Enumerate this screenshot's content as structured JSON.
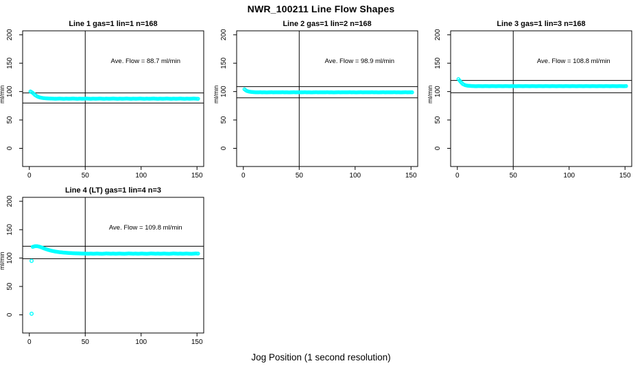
{
  "page_title": "NWR_100211  Line Flow Shapes",
  "x_axis_label": "Jog Position (1 second resolution)",
  "colors": {
    "points": "#00ffff",
    "axis": "#000000"
  },
  "chart_data": [
    {
      "type": "scatter",
      "title": "Line 1 gas=1 lin=1 n=168",
      "annotation": "Ave. Flow =  88.7  ml/min",
      "ave_flow_ml_min": 88.7,
      "ylabel": "ml/min",
      "xlim": [
        -6,
        156
      ],
      "ylim": [
        -32,
        207
      ],
      "xticks": [
        0,
        50,
        100,
        150
      ],
      "yticks": [
        0,
        50,
        100,
        150,
        200
      ],
      "vline_x": 50,
      "ref_lines": {
        "upper": 97.6,
        "lower": 79.8
      },
      "series": {
        "x_start": 1,
        "x_step": 2,
        "y": [
          100.2,
          97.8,
          94.0,
          91.5,
          89.9,
          89.0,
          88.4,
          88.1,
          87.9,
          87.7,
          87.6,
          87.4,
          87.5,
          87.7,
          87.5,
          87.3,
          87.6,
          87.4,
          87.5,
          87.7,
          87.5,
          87.3,
          87.6,
          87.4,
          87.5,
          87.7,
          87.5,
          87.3,
          87.6,
          87.4,
          87.5,
          87.7,
          87.5,
          87.3,
          87.6,
          87.4,
          87.5,
          87.7,
          87.5,
          87.3,
          87.6,
          87.4,
          87.5,
          87.7,
          87.5,
          87.3,
          87.6,
          87.4,
          87.5,
          87.7,
          87.5,
          87.3,
          87.6,
          87.4,
          87.5,
          87.7,
          87.5,
          87.3,
          87.6,
          87.4,
          87.5,
          87.7,
          87.5,
          87.3,
          87.6,
          87.4,
          87.5,
          87.7,
          87.5,
          87.3,
          87.6,
          87.4,
          87.5,
          87.7,
          87.5,
          87.3
        ]
      },
      "outliers": []
    },
    {
      "type": "scatter",
      "title": "Line 2 gas=1 lin=2 n=168",
      "annotation": "Ave. Flow =  98.9  ml/min",
      "ave_flow_ml_min": 98.9,
      "ylabel": "ml/min",
      "xlim": [
        -6,
        156
      ],
      "ylim": [
        -32,
        207
      ],
      "xticks": [
        0,
        50,
        100,
        150
      ],
      "yticks": [
        0,
        50,
        100,
        150,
        200
      ],
      "vline_x": 50,
      "ref_lines": {
        "upper": 108.8,
        "lower": 89.0
      },
      "series": {
        "x_start": 1,
        "x_step": 2,
        "y": [
          104.0,
          101.2,
          100.0,
          99.4,
          99.0,
          98.8,
          98.7,
          98.9,
          98.6,
          98.8,
          98.5,
          98.7,
          98.9,
          98.6,
          98.8,
          98.7,
          98.7,
          98.9,
          98.6,
          98.8,
          98.5,
          98.7,
          98.9,
          98.6,
          98.8,
          98.7,
          98.7,
          98.9,
          98.6,
          98.8,
          98.5,
          98.7,
          98.9,
          98.6,
          98.8,
          98.7,
          98.7,
          98.9,
          98.6,
          98.8,
          98.5,
          98.7,
          98.9,
          98.6,
          98.8,
          98.7,
          98.7,
          98.9,
          98.6,
          98.8,
          98.5,
          98.7,
          98.9,
          98.6,
          98.8,
          98.7,
          98.7,
          98.9,
          98.6,
          98.8,
          98.5,
          98.7,
          98.9,
          98.6,
          98.8,
          98.7,
          98.7,
          98.9,
          98.6,
          98.8,
          98.5,
          98.7,
          98.9,
          98.6,
          98.8,
          98.7
        ]
      },
      "outliers": []
    },
    {
      "type": "scatter",
      "title": "Line 3 gas=1 lin=3 n=168",
      "annotation": "Ave. Flow =  108.8  ml/min",
      "ave_flow_ml_min": 108.8,
      "ylabel": "ml/min",
      "xlim": [
        -6,
        156
      ],
      "ylim": [
        -32,
        207
      ],
      "xticks": [
        0,
        50,
        100,
        150
      ],
      "yticks": [
        0,
        50,
        100,
        150,
        200
      ],
      "vline_x": 50,
      "ref_lines": {
        "upper": 119.7,
        "lower": 97.9
      },
      "series": {
        "x_start": 1,
        "x_step": 2,
        "y": [
          122.0,
          117.0,
          113.2,
          111.3,
          110.4,
          110.0,
          109.8,
          109.6,
          109.4,
          109.7,
          109.6,
          109.4,
          109.7,
          109.6,
          109.4,
          109.7,
          109.6,
          109.4,
          109.7,
          109.6,
          109.4,
          109.7,
          109.6,
          109.4,
          109.7,
          109.6,
          109.4,
          109.7,
          109.6,
          109.4,
          109.7,
          109.6,
          109.4,
          109.7,
          109.6,
          109.4,
          109.7,
          109.6,
          109.4,
          109.7,
          109.6,
          109.4,
          109.7,
          109.6,
          109.4,
          109.7,
          109.6,
          109.4,
          109.7,
          109.6,
          109.4,
          109.7,
          109.6,
          109.4,
          109.7,
          109.6,
          109.4,
          109.7,
          109.6,
          109.4,
          109.7,
          109.6,
          109.4,
          109.7,
          109.6,
          109.4,
          109.7,
          109.6,
          109.4,
          109.7,
          109.6,
          109.4,
          109.7,
          109.6,
          109.4,
          109.7
        ]
      },
      "outliers": []
    },
    {
      "type": "scatter",
      "title": "Line 4 (LT) gas=1 lin=4 n=3",
      "annotation": "Ave. Flow =  109.8  ml/min",
      "ave_flow_ml_min": 109.8,
      "ylabel": "ml/min",
      "xlim": [
        -6,
        156
      ],
      "ylim": [
        -32,
        207
      ],
      "xticks": [
        0,
        50,
        100,
        150
      ],
      "yticks": [
        0,
        50,
        100,
        150,
        200
      ],
      "vline_x": 50,
      "ref_lines": {
        "upper": 120.8,
        "lower": 98.8
      },
      "series": {
        "x_start": 3,
        "x_step": 2,
        "y": [
          119.8,
          120.9,
          121.0,
          120.1,
          118.7,
          117.1,
          115.7,
          114.4,
          113.3,
          112.4,
          111.6,
          111.0,
          110.4,
          110.0,
          109.6,
          109.3,
          109.0,
          108.8,
          108.6,
          108.4,
          108.3,
          108.1,
          108.0,
          107.9,
          107.8,
          107.7,
          107.9,
          107.6,
          107.8,
          108.0,
          107.7,
          107.5,
          107.8,
          108.1,
          107.9,
          107.7,
          107.9,
          107.6,
          107.8,
          108.0,
          107.7,
          107.5,
          107.8,
          108.1,
          107.9,
          107.7,
          107.9,
          107.6,
          107.8,
          108.0,
          107.7,
          107.5,
          107.8,
          108.1,
          107.9,
          107.7,
          107.9,
          107.6,
          107.8,
          108.0,
          107.7,
          107.5,
          107.8,
          108.1,
          107.9,
          107.7,
          107.9,
          107.6,
          107.8,
          108.0,
          107.7,
          107.5,
          107.8,
          108.1,
          107.9
        ]
      },
      "outliers": [
        [
          2,
          95.0
        ],
        [
          2,
          2.0
        ]
      ]
    }
  ]
}
